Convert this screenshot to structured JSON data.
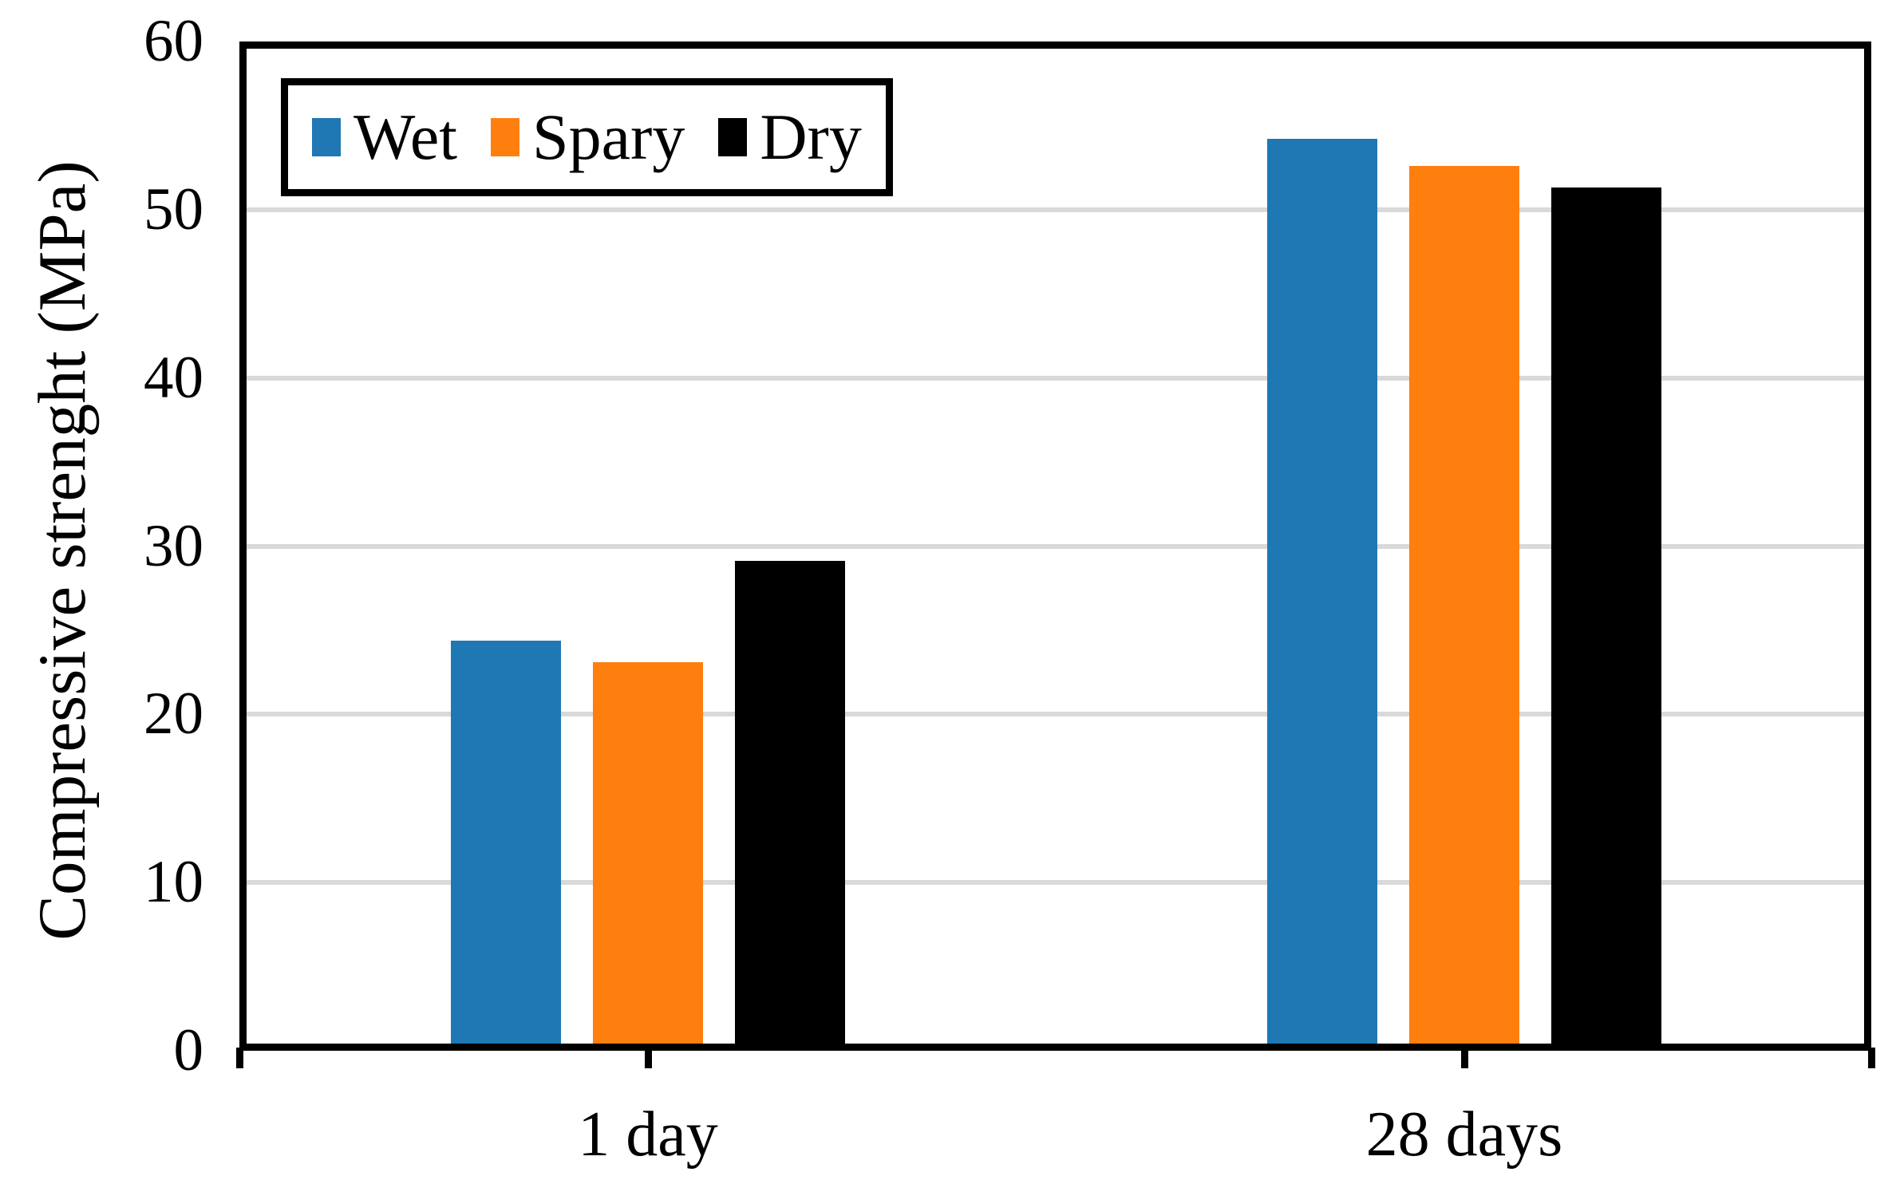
{
  "chart_data": {
    "type": "bar",
    "categories": [
      "1 day",
      "28 days"
    ],
    "series": [
      {
        "name": "Wet",
        "color": "#1F77B4",
        "values": [
          24.4,
          54.2
        ]
      },
      {
        "name": "Spary",
        "color": "#FF7F0E",
        "values": [
          23.1,
          52.6
        ]
      },
      {
        "name": "Dry",
        "color": "#000000",
        "values": [
          29.1,
          51.3
        ]
      }
    ],
    "title": "",
    "xlabel": "",
    "ylabel": "Compressive strenght (MPa)",
    "ylim": [
      0,
      60
    ],
    "yticks": [
      0,
      10,
      20,
      30,
      40,
      50,
      60
    ],
    "grid": true,
    "gridline_color": "#D9D9D9",
    "axis_color": "#000000",
    "legend_position": "top-left"
  }
}
